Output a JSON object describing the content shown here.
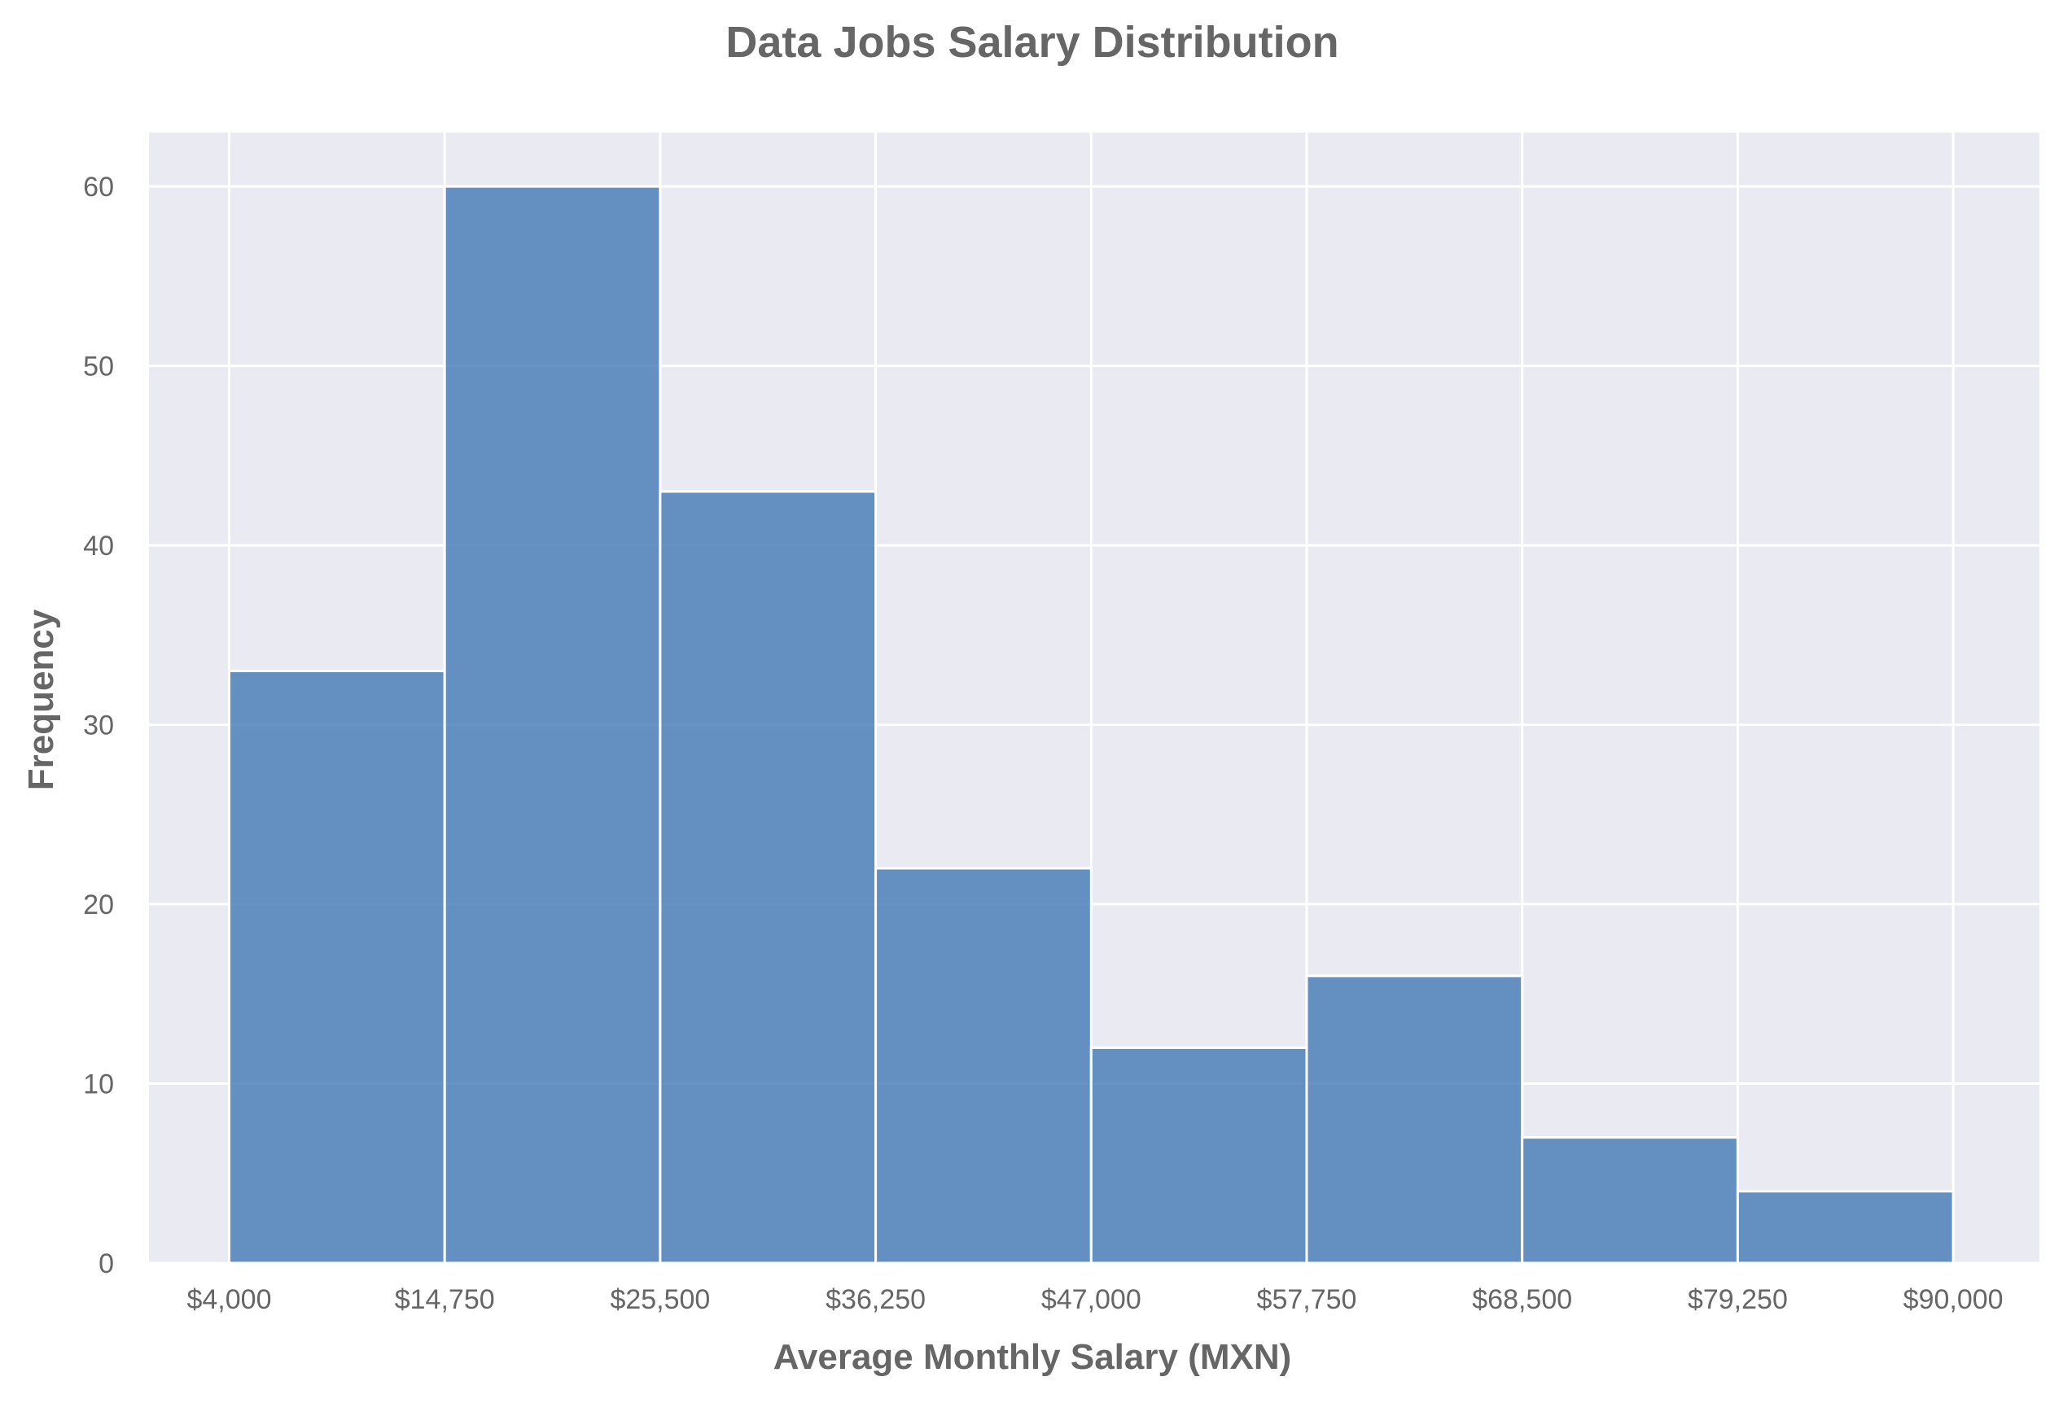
{
  "chart_data": {
    "type": "bar",
    "title": "Data Jobs Salary Distribution",
    "xlabel": "Average Monthly Salary (MXN)",
    "ylabel": "Frequency",
    "bin_edges": [
      4000,
      14750,
      25500,
      36250,
      47000,
      57750,
      68500,
      79250,
      90000
    ],
    "x_tick_labels": [
      "$4,000",
      "$14,750",
      "$25,500",
      "$36,250",
      "$47,000",
      "$57,750",
      "$68,500",
      "$79,250",
      "$90,000"
    ],
    "values": [
      33,
      60,
      43,
      22,
      12,
      16,
      7,
      4
    ],
    "y_ticks": [
      0,
      10,
      20,
      30,
      40,
      50,
      60
    ],
    "y_tick_labels": [
      "0",
      "10",
      "20",
      "30",
      "40",
      "50",
      "60"
    ],
    "xlim": [
      0,
      94300
    ],
    "ylim": [
      0,
      63
    ],
    "grid": true,
    "colors": {
      "plot_background": "#EAEAF2",
      "grid": "#FFFFFF",
      "bar_fill": "#4C7FB8",
      "bar_opacity": 0.85,
      "bar_edge": "#FFFFFF",
      "text": "#666666"
    }
  }
}
